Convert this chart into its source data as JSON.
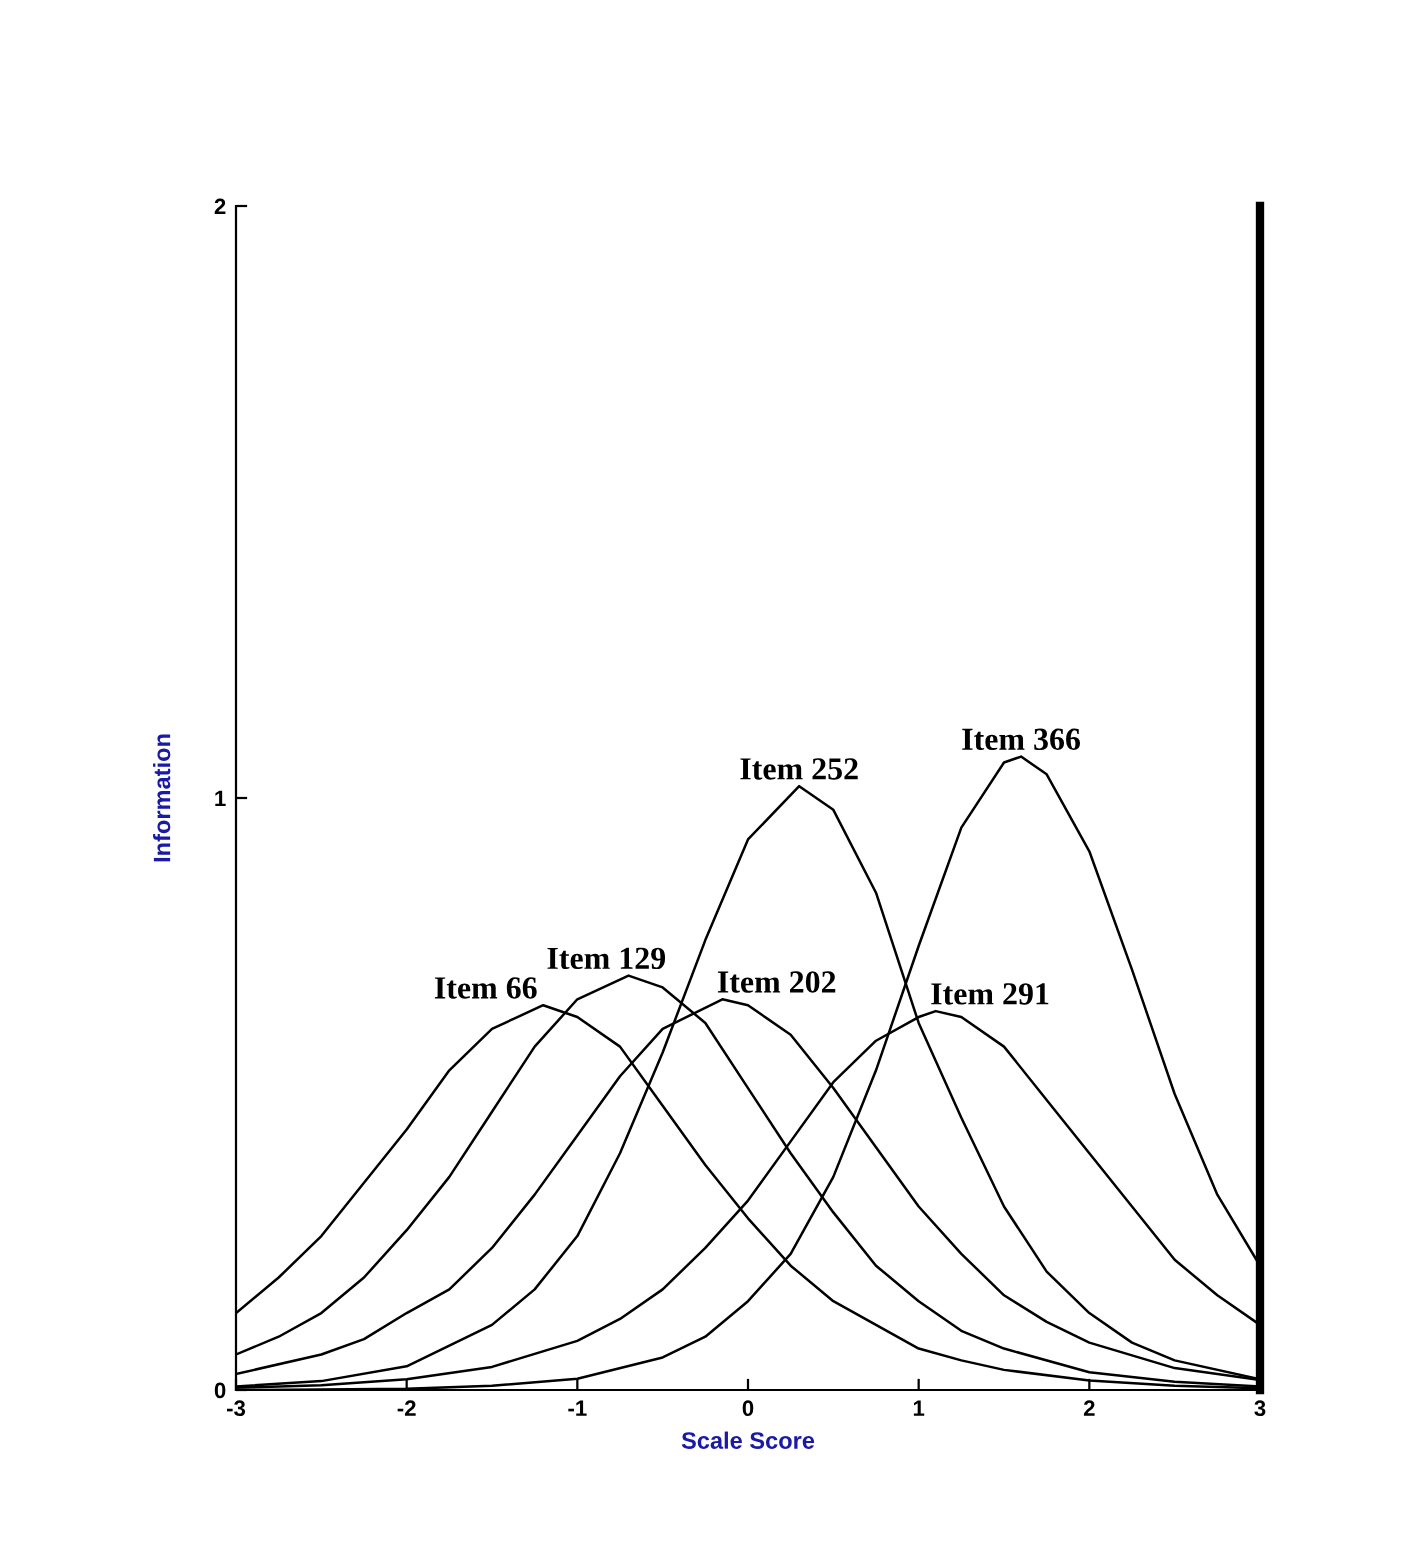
{
  "chart_data": {
    "type": "line",
    "xlabel": "Scale Score",
    "ylabel": "Information",
    "xlim": [
      -3,
      3
    ],
    "ylim": [
      0,
      2
    ],
    "xticks": [
      -3,
      -2,
      -1,
      0,
      1,
      2,
      3
    ],
    "yticks": [
      0,
      1,
      2
    ],
    "grid": false,
    "legend": false,
    "marker": "none",
    "line_style": "solid",
    "series": [
      {
        "name": "Item 66",
        "color": "#000000",
        "x": [
          -3,
          -2.75,
          -2.5,
          -2.25,
          -2,
          -1.75,
          -1.5,
          -1.2,
          -1,
          -0.75,
          -0.5,
          -0.25,
          0,
          0.25,
          0.5,
          0.75,
          1,
          1.25,
          1.5,
          2,
          2.5,
          3
        ],
        "values": [
          0.13,
          0.19,
          0.26,
          0.35,
          0.44,
          0.54,
          0.61,
          0.65,
          0.63,
          0.58,
          0.48,
          0.38,
          0.29,
          0.21,
          0.15,
          0.11,
          0.07,
          0.05,
          0.034,
          0.016,
          0.007,
          0.003
        ]
      },
      {
        "name": "Item 129",
        "color": "#000000",
        "x": [
          -3,
          -2.75,
          -2.5,
          -2.25,
          -2,
          -1.75,
          -1.5,
          -1.25,
          -1,
          -0.7,
          -0.5,
          -0.25,
          0,
          0.25,
          0.5,
          0.75,
          1,
          1.25,
          1.5,
          2,
          2.5,
          3
        ],
        "values": [
          0.06,
          0.09,
          0.13,
          0.19,
          0.27,
          0.36,
          0.47,
          0.58,
          0.66,
          0.7,
          0.68,
          0.62,
          0.51,
          0.4,
          0.3,
          0.21,
          0.15,
          0.1,
          0.07,
          0.03,
          0.014,
          0.006
        ]
      },
      {
        "name": "Item 202",
        "color": "#000000",
        "x": [
          -3,
          -2.5,
          -2.25,
          -2,
          -1.75,
          -1.5,
          -1.25,
          -1,
          -0.75,
          -0.5,
          -0.15,
          0,
          0.25,
          0.5,
          0.75,
          1,
          1.25,
          1.5,
          1.75,
          2,
          2.5,
          3
        ],
        "values": [
          0.027,
          0.06,
          0.086,
          0.13,
          0.17,
          0.24,
          0.33,
          0.43,
          0.53,
          0.61,
          0.66,
          0.65,
          0.6,
          0.51,
          0.41,
          0.31,
          0.23,
          0.16,
          0.115,
          0.08,
          0.037,
          0.017
        ]
      },
      {
        "name": "Item 252",
        "color": "#000000",
        "x": [
          -3,
          -2.5,
          -2,
          -1.5,
          -1.25,
          -1,
          -0.75,
          -0.5,
          -0.25,
          0,
          0.3,
          0.5,
          0.75,
          1,
          1.25,
          1.5,
          1.75,
          2,
          2.25,
          2.5,
          3
        ],
        "values": [
          0.006,
          0.015,
          0.04,
          0.11,
          0.17,
          0.26,
          0.4,
          0.57,
          0.76,
          0.93,
          1.02,
          0.98,
          0.84,
          0.62,
          0.46,
          0.31,
          0.2,
          0.13,
          0.08,
          0.05,
          0.018
        ]
      },
      {
        "name": "Item 291",
        "color": "#000000",
        "x": [
          -3,
          -2.5,
          -2,
          -1.5,
          -1,
          -0.75,
          -0.5,
          -0.25,
          0,
          0.25,
          0.5,
          0.75,
          1,
          1.1,
          1.25,
          1.5,
          1.75,
          2,
          2.25,
          2.5,
          2.75,
          3
        ],
        "values": [
          0.004,
          0.008,
          0.018,
          0.039,
          0.083,
          0.12,
          0.17,
          0.24,
          0.32,
          0.42,
          0.52,
          0.59,
          0.63,
          0.64,
          0.63,
          0.58,
          0.49,
          0.4,
          0.31,
          0.22,
          0.16,
          0.11
        ]
      },
      {
        "name": "Item 366",
        "color": "#000000",
        "x": [
          -3,
          -2.5,
          -2,
          -1.5,
          -1,
          -0.5,
          -0.25,
          0,
          0.25,
          0.5,
          0.75,
          1,
          1.25,
          1.5,
          1.6,
          1.75,
          2,
          2.25,
          2.5,
          2.75,
          3
        ],
        "values": [
          0.0,
          0.001,
          0.002,
          0.007,
          0.019,
          0.055,
          0.09,
          0.15,
          0.23,
          0.36,
          0.54,
          0.75,
          0.95,
          1.06,
          1.07,
          1.04,
          0.91,
          0.71,
          0.5,
          0.33,
          0.21
        ]
      }
    ]
  }
}
